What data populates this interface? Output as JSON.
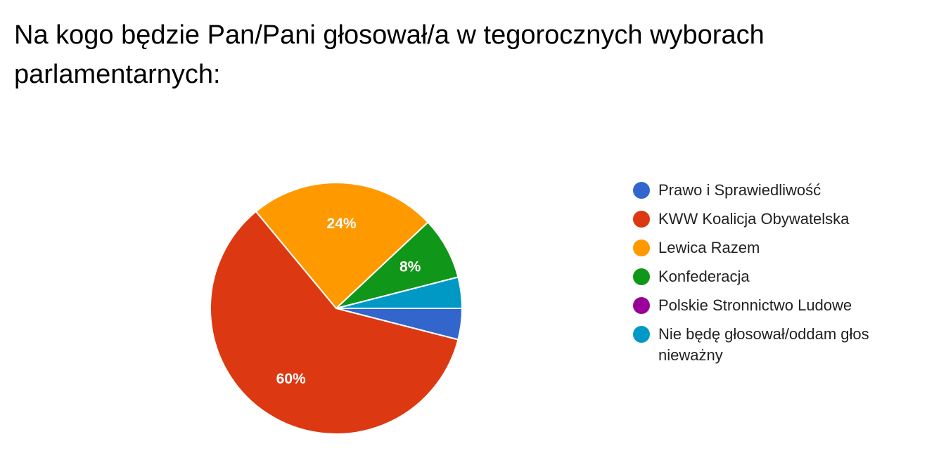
{
  "chart_data": {
    "type": "pie",
    "title": "Na kogo będzie Pan/Pani głosował/a w tegorocznych wyborach parlamentarnych:",
    "categories": [
      "Prawo i Sprawiedliwość",
      "KWW Koalicja Obywatelska",
      "Lewica Razem",
      "Konfederacja",
      "Polskie Stronnictwo Ludowe",
      "Nie będę głosował/oddam głos nieważny"
    ],
    "values": [
      4,
      60,
      24,
      8,
      0,
      4
    ],
    "data_labels": [
      "",
      "60%",
      "24%",
      "8%",
      "",
      ""
    ],
    "colors": [
      "#3366cc",
      "#dc3912",
      "#ff9900",
      "#109618",
      "#990099",
      "#0099c6"
    ],
    "legend_position": "right",
    "start_angle_deg": 90,
    "direction": "clockwise"
  }
}
